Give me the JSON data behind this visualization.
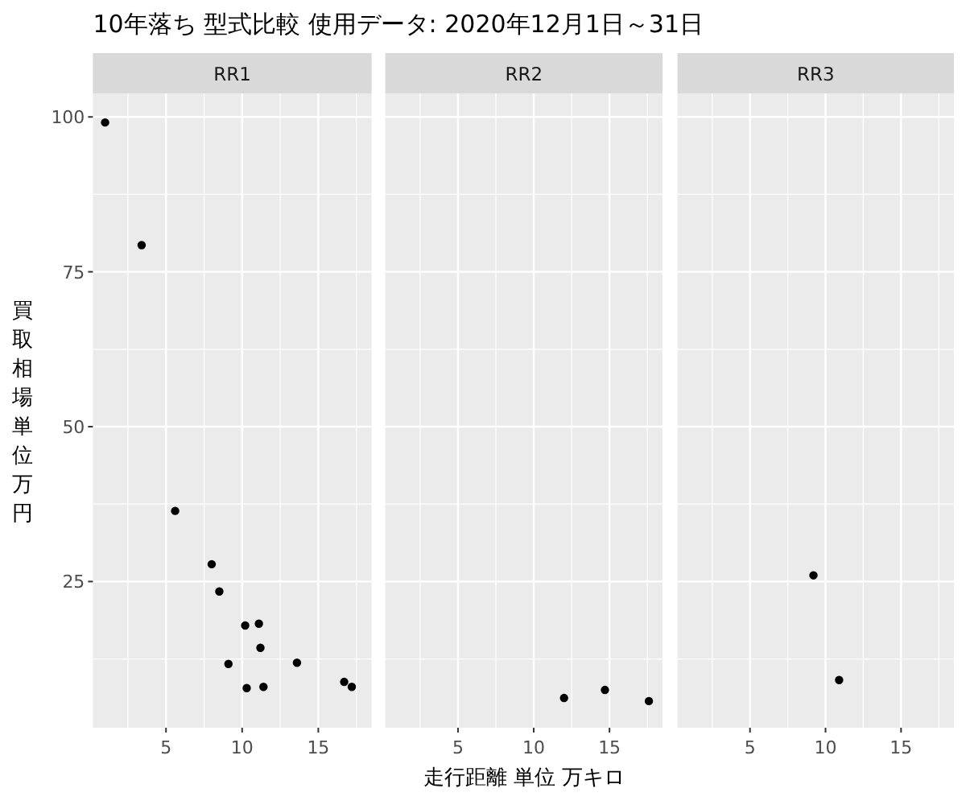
{
  "chart_data": [
    {
      "type": "scatter",
      "title": "RR1",
      "annotations": [
        "10年落ち 型式比較 使用データ: 2020年12月1日～31日"
      ],
      "ylabel": "買取相場単位万円",
      "xlim": [
        0.2,
        18.5
      ],
      "ylim": [
        1.4,
        103.8
      ],
      "xticks": [
        5,
        10,
        15
      ],
      "yticks": [
        25,
        50,
        75,
        100
      ],
      "grid": true,
      "marker": "circle",
      "color": "#000000",
      "x": [
        1.0,
        3.4,
        5.6,
        8.0,
        8.5,
        10.2,
        11.1,
        11.2,
        9.1,
        13.6,
        10.3,
        11.4,
        16.7,
        17.2
      ],
      "values": [
        99.1,
        79.3,
        36.4,
        27.8,
        23.4,
        17.9,
        18.2,
        14.3,
        11.7,
        11.9,
        7.8,
        8.0,
        8.8,
        8.0
      ]
    },
    {
      "type": "scatter",
      "title": "RR2",
      "xlabel": "走行距離 単位 万キロ",
      "xlim": [
        0.2,
        18.5
      ],
      "ylim": [
        1.4,
        103.8
      ],
      "xticks": [
        5,
        10,
        15
      ],
      "yticks": [
        25,
        50,
        75,
        100
      ],
      "tick_labels": "x",
      "grid": true,
      "marker": "circle",
      "color": "#000000",
      "x": [
        12.0,
        14.7,
        17.6
      ],
      "values": [
        6.2,
        7.5,
        5.7
      ]
    },
    {
      "type": "scatter",
      "title": "RR3",
      "xlim": [
        0.2,
        18.5
      ],
      "ylim": [
        1.4,
        103.8
      ],
      "xticks": [
        5,
        10,
        15
      ],
      "yticks": [
        25,
        50,
        75,
        100
      ],
      "tick_labels": "x",
      "grid": true,
      "marker": "circle",
      "color": "#000000",
      "x": [
        9.2,
        10.9
      ],
      "values": [
        26.0,
        9.1
      ]
    }
  ]
}
